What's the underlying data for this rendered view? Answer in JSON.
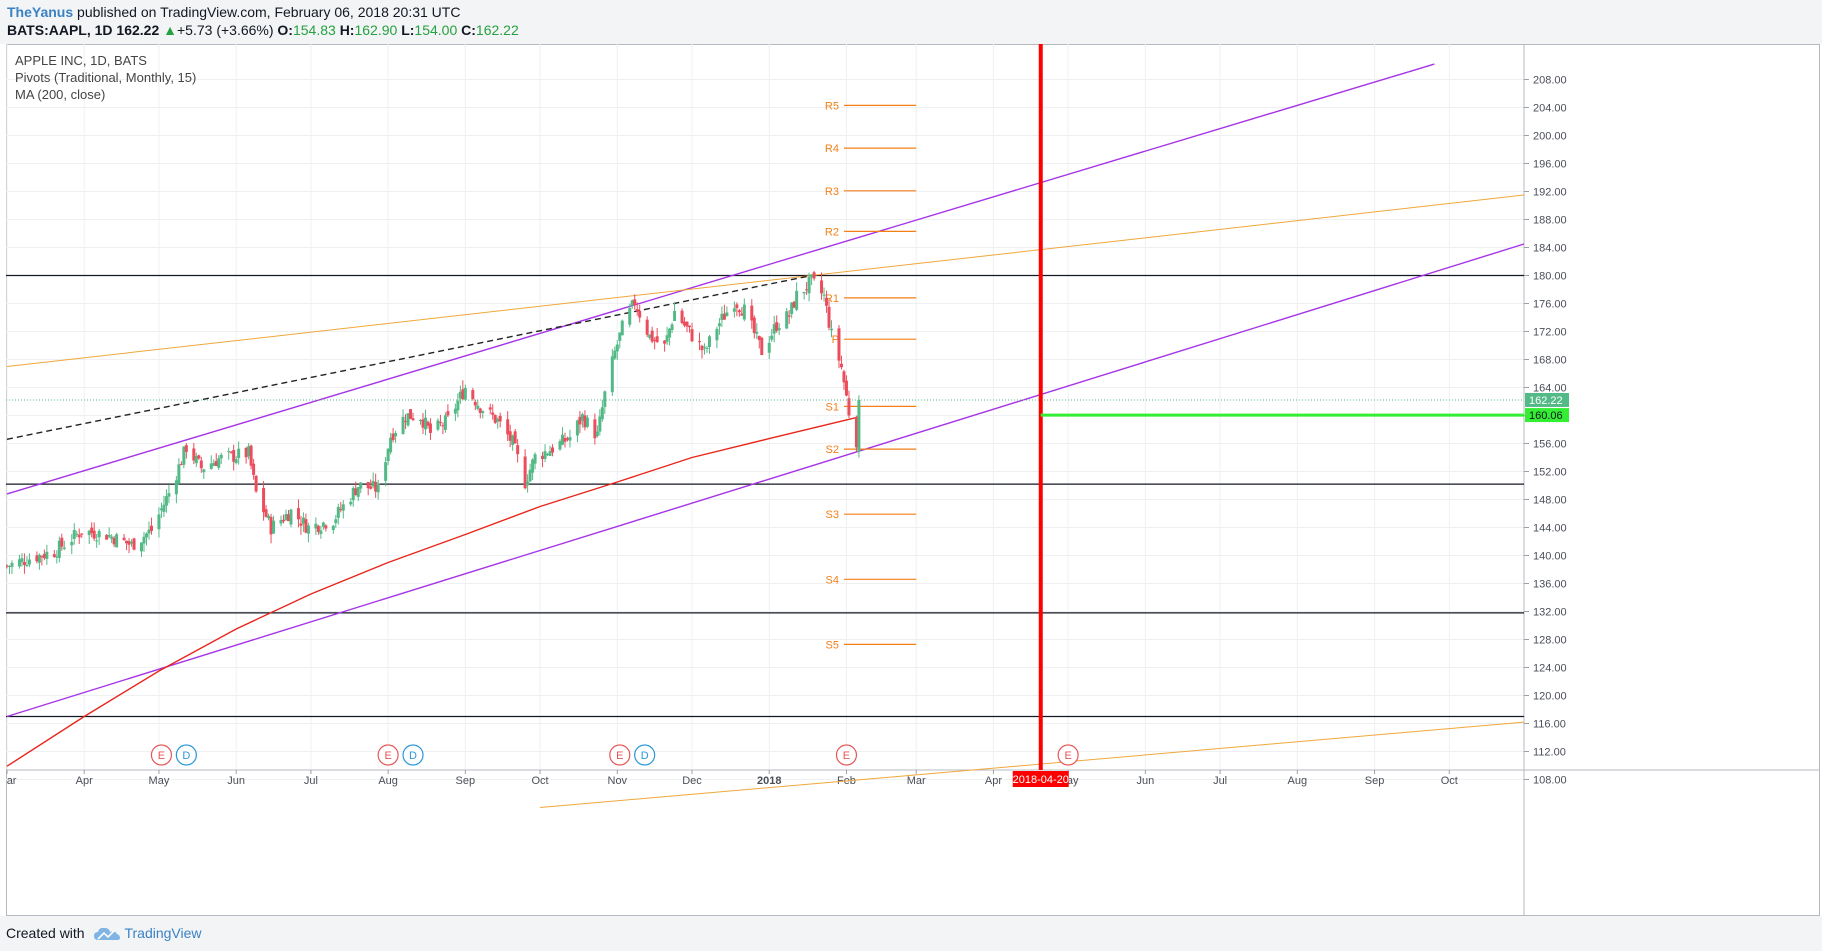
{
  "header": {
    "author": "TheYanus",
    "published": "published on TradingView.com, February 06, 2018 20:31 UTC",
    "symbol": "BATS:AAPL, 1D",
    "last": "162.22",
    "change_arrow": "▲",
    "change": "+5.73 (+3.66%)",
    "o_label": "O:",
    "o_value": "154.83",
    "h_label": "H:",
    "h_value": "162.90",
    "l_label": "L:",
    "l_value": "154.00",
    "c_label": "C:",
    "c_value": "162.22"
  },
  "legend": {
    "line1": "APPLE INC, 1D, BATS",
    "line2": "Pivots (Traditional, Monthly, 15)",
    "line3": "MA (200, close)"
  },
  "footer": {
    "created": "Created with",
    "brand": "TradingView"
  },
  "colors": {
    "up": "#53b987",
    "down": "#eb4d5c",
    "ma": "#e8261b",
    "channel": "#a734e6",
    "orange": "#f0a73a",
    "pivot": "#f57f17",
    "vline": "#ff0000",
    "target": "#33ee33"
  },
  "icons": [
    "tradingview-cloud-logo",
    "earnings-e-icon",
    "dividend-d-icon"
  ],
  "chart_data": {
    "type": "candlestick",
    "symbol": "AAPL",
    "interval": "1D",
    "ylim": [
      104,
      210
    ],
    "y_ticks": [
      108,
      112,
      116,
      120,
      124,
      128,
      132,
      136,
      140,
      144,
      148,
      152,
      156,
      160,
      164,
      168,
      172,
      176,
      180,
      184,
      188,
      192,
      196,
      200,
      204,
      208
    ],
    "x_range": [
      "2017-03-01",
      "2018-10-31"
    ],
    "x_ticks": [
      {
        "date": "2017-03-01",
        "label": "Mar"
      },
      {
        "date": "2017-04-01",
        "label": "Apr"
      },
      {
        "date": "2017-05-01",
        "label": "May"
      },
      {
        "date": "2017-06-01",
        "label": "Jun"
      },
      {
        "date": "2017-07-01",
        "label": "Jul"
      },
      {
        "date": "2017-08-01",
        "label": "Aug"
      },
      {
        "date": "2017-09-01",
        "label": "Sep"
      },
      {
        "date": "2017-10-01",
        "label": "Oct"
      },
      {
        "date": "2017-11-01",
        "label": "Nov"
      },
      {
        "date": "2017-12-01",
        "label": "Dec"
      },
      {
        "date": "2018-01-01",
        "label": "2018"
      },
      {
        "date": "2018-02-01",
        "label": "Feb"
      },
      {
        "date": "2018-03-01",
        "label": "Mar"
      },
      {
        "date": "2018-04-01",
        "label": "Apr"
      },
      {
        "date": "2018-05-01",
        "label": "May"
      },
      {
        "date": "2018-06-01",
        "label": "Jun"
      },
      {
        "date": "2018-07-01",
        "label": "Jul"
      },
      {
        "date": "2018-08-01",
        "label": "Aug"
      },
      {
        "date": "2018-09-01",
        "label": "Sep"
      },
      {
        "date": "2018-10-01",
        "label": "Oct"
      }
    ],
    "close_path": [
      [
        "2017-03-01",
        138.5
      ],
      [
        "2017-03-10",
        139.6
      ],
      [
        "2017-03-20",
        140.6
      ],
      [
        "2017-03-31",
        143.5
      ],
      [
        "2017-04-10",
        143.0
      ],
      [
        "2017-04-20",
        141.5
      ],
      [
        "2017-04-28",
        143.6
      ],
      [
        "2017-05-05",
        148.9
      ],
      [
        "2017-05-12",
        155.5
      ],
      [
        "2017-05-18",
        152.5
      ],
      [
        "2017-05-25",
        153.8
      ],
      [
        "2017-06-06",
        154.6
      ],
      [
        "2017-06-09",
        148.9
      ],
      [
        "2017-06-15",
        144.0
      ],
      [
        "2017-06-23",
        146.3
      ],
      [
        "2017-06-30",
        144.0
      ],
      [
        "2017-07-10",
        145.1
      ],
      [
        "2017-07-20",
        150.0
      ],
      [
        "2017-07-28",
        149.5
      ],
      [
        "2017-08-02",
        157.1
      ],
      [
        "2017-08-08",
        160.0
      ],
      [
        "2017-08-14",
        159.9
      ],
      [
        "2017-08-18",
        157.5
      ],
      [
        "2017-08-25",
        159.3
      ],
      [
        "2017-09-01",
        164.0
      ],
      [
        "2017-09-07",
        161.3
      ],
      [
        "2017-09-14",
        159.2
      ],
      [
        "2017-09-20",
        156.1
      ],
      [
        "2017-09-25",
        150.5
      ],
      [
        "2017-09-29",
        154.1
      ],
      [
        "2017-10-06",
        155.3
      ],
      [
        "2017-10-13",
        156.9
      ],
      [
        "2017-10-18",
        159.8
      ],
      [
        "2017-10-24",
        157.1
      ],
      [
        "2017-10-27",
        163.0
      ],
      [
        "2017-10-31",
        169.0
      ],
      [
        "2017-11-03",
        172.5
      ],
      [
        "2017-11-08",
        176.2
      ],
      [
        "2017-11-14",
        171.3
      ],
      [
        "2017-11-20",
        169.8
      ],
      [
        "2017-11-24",
        174.9
      ],
      [
        "2017-11-30",
        171.9
      ],
      [
        "2017-12-06",
        169.0
      ],
      [
        "2017-12-11",
        172.7
      ],
      [
        "2017-12-18",
        176.4
      ],
      [
        "2017-12-22",
        175.0
      ],
      [
        "2017-12-29",
        169.2
      ],
      [
        "2018-01-04",
        173.0
      ],
      [
        "2018-01-09",
        174.3
      ],
      [
        "2018-01-12",
        177.1
      ],
      [
        "2018-01-18",
        179.1
      ],
      [
        "2018-01-23",
        177.0
      ],
      [
        "2018-01-26",
        171.5
      ],
      [
        "2018-01-30",
        166.9
      ],
      [
        "2018-02-02",
        160.5
      ],
      [
        "2018-02-05",
        156.5
      ],
      [
        "2018-02-06",
        162.22
      ]
    ],
    "ma200": [
      [
        "2017-03-01",
        109.9
      ],
      [
        "2017-04-01",
        117.0
      ],
      [
        "2017-05-01",
        123.5
      ],
      [
        "2017-06-01",
        129.5
      ],
      [
        "2017-07-01",
        134.5
      ],
      [
        "2017-08-01",
        139.0
      ],
      [
        "2017-09-01",
        143.0
      ],
      [
        "2017-10-01",
        147.0
      ],
      [
        "2017-11-01",
        150.5
      ],
      [
        "2017-12-01",
        154.0
      ],
      [
        "2018-01-01",
        156.7
      ],
      [
        "2018-02-06",
        159.8
      ]
    ],
    "trendlines": [
      {
        "name": "channel-upper",
        "color": "#a734e6",
        "p1": [
          "2017-03-01",
          148.8
        ],
        "p2": [
          "2018-09-25",
          210.2
        ]
      },
      {
        "name": "channel-lower",
        "color": "#a734e6",
        "p1": [
          "2017-03-01",
          117.0
        ],
        "p2": [
          "2018-10-31",
          184.5
        ]
      },
      {
        "name": "orange-upper",
        "color": "#f0a73a",
        "p1": [
          "2017-03-01",
          167.0
        ],
        "p2": [
          "2018-10-31",
          191.5
        ]
      },
      {
        "name": "orange-lower",
        "color": "#f0a73a",
        "p1": [
          "2017-10-01",
          104.0
        ],
        "p2": [
          "2018-10-31",
          116.2
        ]
      },
      {
        "name": "dashed-top",
        "color": "#222222",
        "dashed": true,
        "p1": [
          "2017-03-01",
          156.6
        ],
        "p2": [
          "2018-01-18",
          180.0
        ]
      }
    ],
    "horizontal_levels": [
      180.0,
      150.2,
      131.8,
      117.0
    ],
    "pivots": [
      {
        "label": "R5",
        "value": 204.3
      },
      {
        "label": "R4",
        "value": 198.2
      },
      {
        "label": "R3",
        "value": 192.1
      },
      {
        "label": "R2",
        "value": 186.3
      },
      {
        "label": "R1",
        "value": 176.8
      },
      {
        "label": "P",
        "value": 170.9
      },
      {
        "label": "S1",
        "value": 161.3
      },
      {
        "label": "S2",
        "value": 155.2
      },
      {
        "label": "S3",
        "value": 145.9
      },
      {
        "label": "S4",
        "value": 136.6
      },
      {
        "label": "S5",
        "value": 127.3
      }
    ],
    "pivot_span": [
      "2018-01-31",
      "2018-03-01"
    ],
    "last_price": 162.22,
    "target": {
      "value": 160.06,
      "label": "160.06",
      "from": "2018-04-20"
    },
    "vertical_marker": {
      "date": "2018-04-20",
      "label": "2018-04-20"
    },
    "events": [
      {
        "type": "E",
        "date": "2017-05-02"
      },
      {
        "type": "D",
        "date": "2017-05-12"
      },
      {
        "type": "E",
        "date": "2017-08-01"
      },
      {
        "type": "D",
        "date": "2017-08-11"
      },
      {
        "type": "E",
        "date": "2017-11-02"
      },
      {
        "type": "D",
        "date": "2017-11-12"
      },
      {
        "type": "E",
        "date": "2018-02-01"
      },
      {
        "type": "E",
        "date": "2018-05-01"
      }
    ]
  }
}
